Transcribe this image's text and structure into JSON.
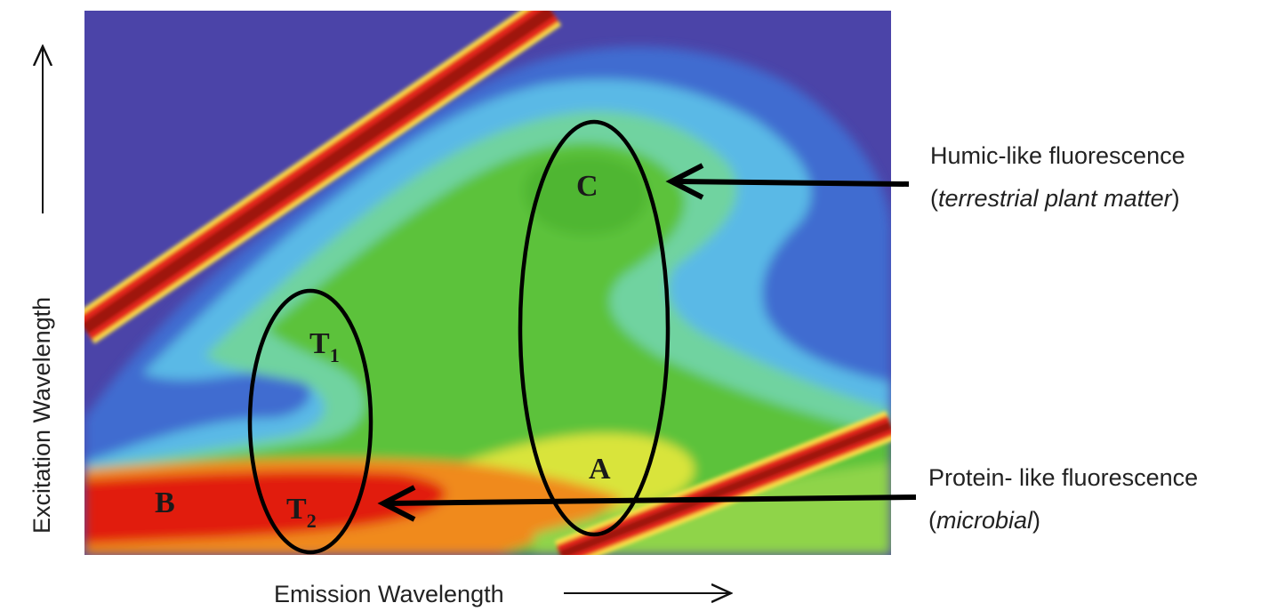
{
  "chart_data": {
    "type": "heatmap",
    "title": "",
    "xlabel": "Emission Wavelength",
    "ylabel": "Excitation Wavelength",
    "peaks": [
      {
        "label": "C",
        "sub": ""
      },
      {
        "label": "T",
        "sub": "1"
      },
      {
        "label": "A",
        "sub": ""
      },
      {
        "label": "B",
        "sub": ""
      },
      {
        "label": "T",
        "sub": "2"
      }
    ],
    "annotations": [
      {
        "line1": "Humic-like fluorescence",
        "paren_open": "(",
        "line2": "terrestrial plant matter",
        "paren_close": ")"
      },
      {
        "line1": "Protein- like fluorescence",
        "paren_open": "(",
        "line2": "microbial",
        "paren_close": ")"
      }
    ],
    "colormap": [
      "#5a4cb0",
      "#3d6ad0",
      "#5cb8e6",
      "#6fd3a0",
      "#5cc23a",
      "#e8e030",
      "#f07a18",
      "#e01a10",
      "#9a1010"
    ]
  }
}
